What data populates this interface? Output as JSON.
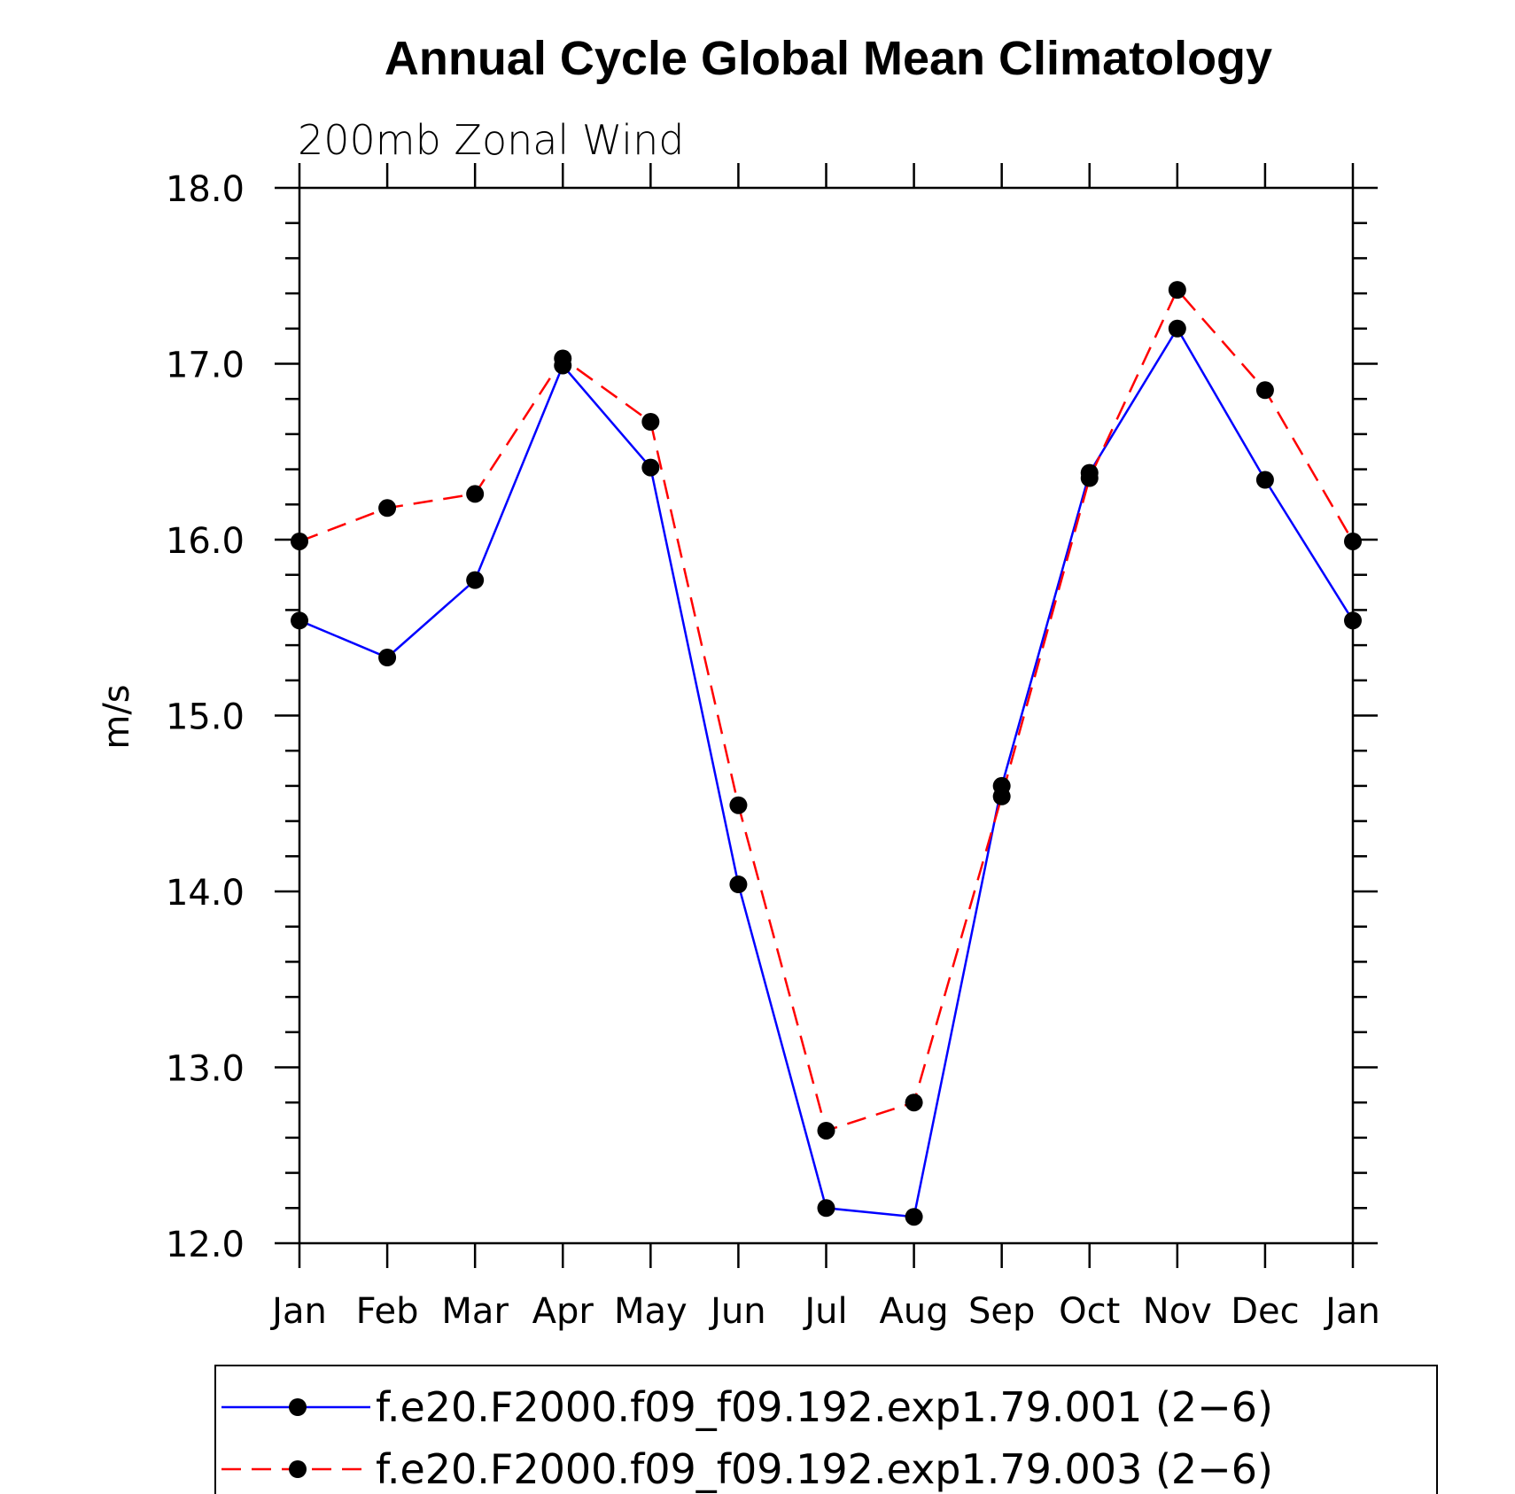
{
  "chart_data": {
    "type": "line",
    "title": "Annual Cycle Global Mean Climatology",
    "subtitle": "200mb Zonal Wind",
    "xlabel": "",
    "ylabel": "m/s",
    "categories": [
      "Jan",
      "Feb",
      "Mar",
      "Apr",
      "May",
      "Jun",
      "Jul",
      "Aug",
      "Sep",
      "Oct",
      "Nov",
      "Dec",
      "Jan"
    ],
    "ylim": [
      12.0,
      18.0
    ],
    "yticks": [
      "12.0",
      "13.0",
      "14.0",
      "15.0",
      "16.0",
      "17.0",
      "18.0"
    ],
    "grid": false,
    "legend_position": "bottom",
    "series": [
      {
        "name": "f.e20.F2000.f09_f09.192.exp1.79.001 (2−6)",
        "color": "#0000ff",
        "dash": "solid",
        "marker": "filled-circle",
        "values": [
          15.54,
          15.33,
          15.77,
          16.99,
          16.41,
          14.04,
          12.2,
          12.15,
          14.6,
          16.38,
          17.2,
          16.34,
          15.54
        ]
      },
      {
        "name": "f.e20.F2000.f09_f09.192.exp1.79.003 (2−6)",
        "color": "#ff0000",
        "dash": "dashed",
        "marker": "filled-circle",
        "values": [
          15.99,
          16.18,
          16.26,
          17.03,
          16.67,
          14.49,
          12.64,
          12.8,
          14.54,
          16.35,
          17.42,
          16.85,
          15.99
        ]
      }
    ]
  }
}
